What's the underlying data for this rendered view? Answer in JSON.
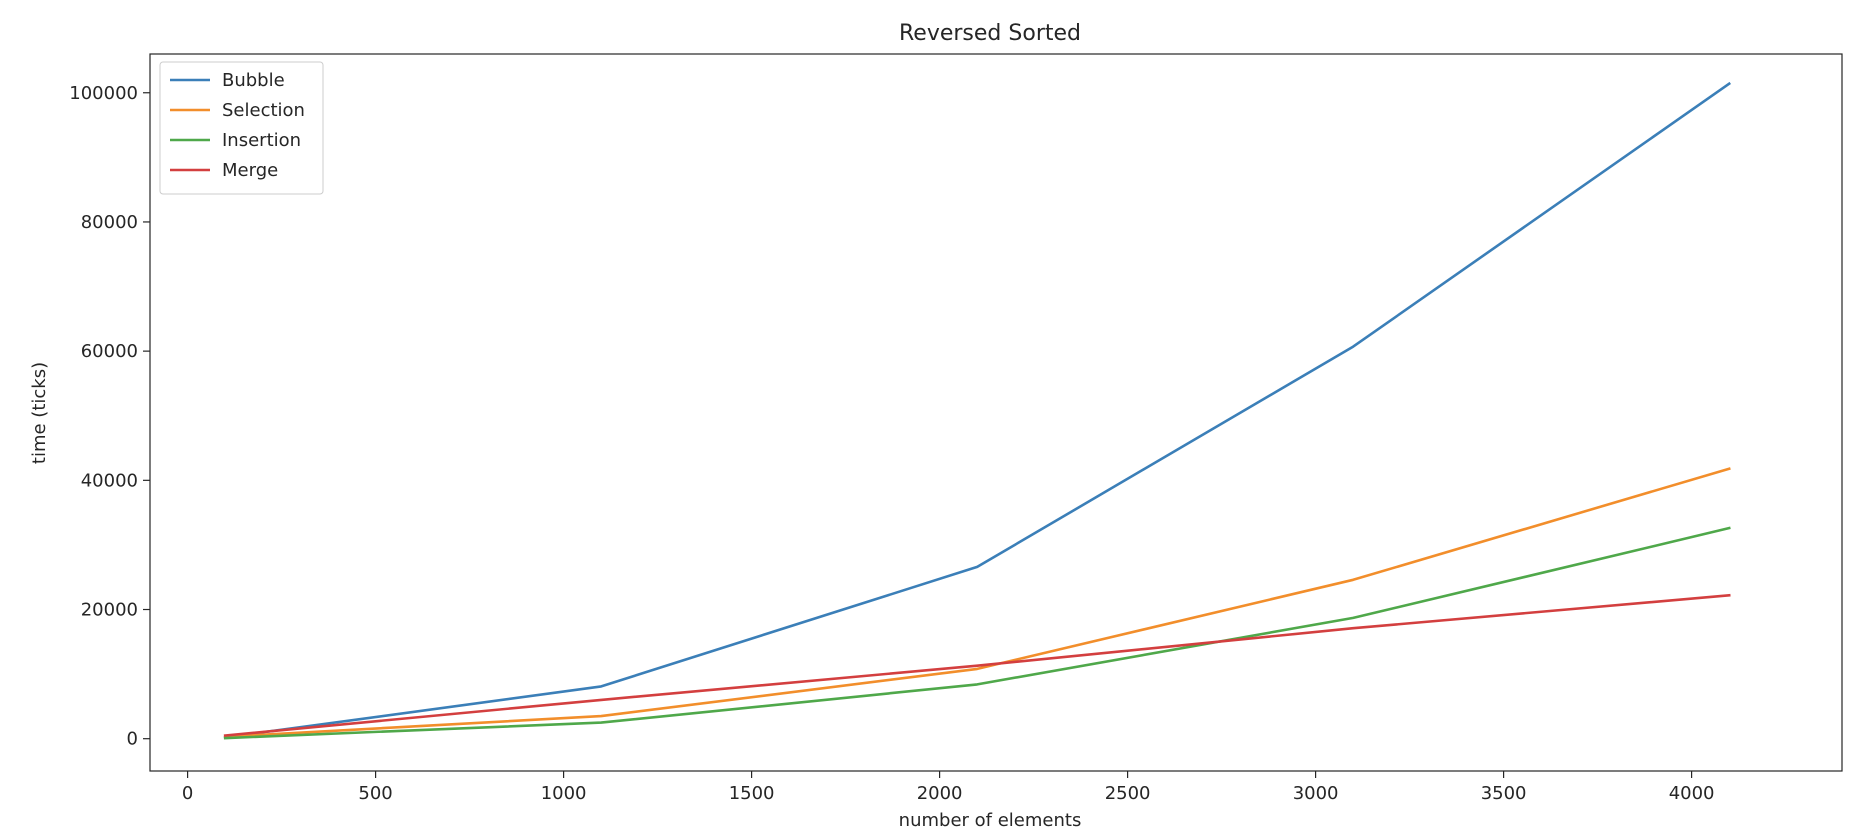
{
  "chart_data": {
    "type": "line",
    "title": "Reversed Sorted",
    "xlabel": "number of elements",
    "ylabel": "time (ticks)",
    "xlim": [
      -100,
      4400
    ],
    "ylim": [
      -5000,
      106000
    ],
    "xticks": [
      0,
      500,
      1000,
      1500,
      2000,
      2500,
      3000,
      3500,
      4000
    ],
    "yticks": [
      0,
      20000,
      40000,
      60000,
      80000,
      100000
    ],
    "grid": false,
    "legend_position": "top-left",
    "x": [
      100,
      1100,
      2100,
      3100,
      4100
    ],
    "series": [
      {
        "name": "Bubble",
        "color": "#3b7fb8",
        "values": [
          200,
          8100,
          26600,
          60700,
          101400
        ]
      },
      {
        "name": "Selection",
        "color": "#f28e2b",
        "values": [
          300,
          3500,
          10800,
          24600,
          41800
        ]
      },
      {
        "name": "Insertion",
        "color": "#4fa84a",
        "values": [
          100,
          2500,
          8400,
          18700,
          32600
        ]
      },
      {
        "name": "Merge",
        "color": "#d33f3f",
        "values": [
          500,
          6000,
          11300,
          17100,
          22200
        ]
      }
    ]
  }
}
